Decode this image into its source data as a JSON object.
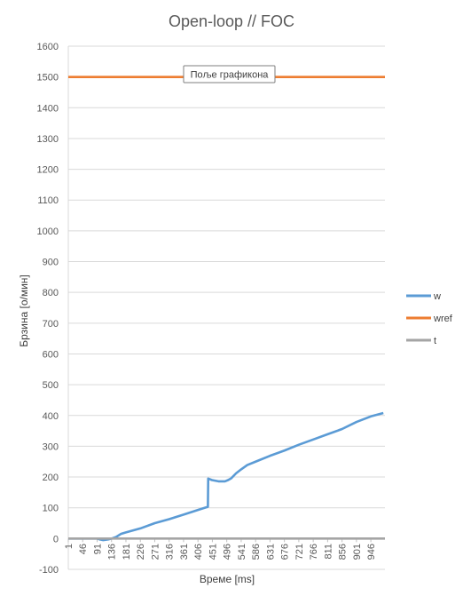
{
  "chart_data": {
    "type": "line",
    "title": "Open-loop // FOC",
    "xlabel": "Време [ms]",
    "ylabel": "Брзина [o/мин]",
    "ylim": [
      -100,
      1600
    ],
    "yticks": [
      -100,
      0,
      100,
      200,
      300,
      400,
      500,
      600,
      700,
      800,
      900,
      1000,
      1100,
      1200,
      1300,
      1400,
      1500,
      1600
    ],
    "x_range": [
      1,
      990
    ],
    "xticks": [
      "1",
      "46",
      "91",
      "136",
      "181",
      "226",
      "271",
      "316",
      "361",
      "406",
      "451",
      "496",
      "541",
      "586",
      "631",
      "676",
      "721",
      "766",
      "811",
      "856",
      "901",
      "946"
    ],
    "grid": "horizontal",
    "legend_position": "right",
    "tooltip": "Поље графикона",
    "series": [
      {
        "name": "w",
        "color": "#5b9bd5",
        "points": [
          [
            1,
            0
          ],
          [
            91,
            0
          ],
          [
            100,
            -3
          ],
          [
            110,
            -5
          ],
          [
            125,
            -3
          ],
          [
            136,
            0
          ],
          [
            150,
            5
          ],
          [
            165,
            15
          ],
          [
            181,
            20
          ],
          [
            226,
            33
          ],
          [
            271,
            50
          ],
          [
            316,
            63
          ],
          [
            361,
            78
          ],
          [
            406,
            93
          ],
          [
            430,
            101
          ],
          [
            437,
            103
          ],
          [
            438,
            195
          ],
          [
            450,
            190
          ],
          [
            470,
            186
          ],
          [
            490,
            186
          ],
          [
            500,
            190
          ],
          [
            510,
            196
          ],
          [
            525,
            212
          ],
          [
            541,
            225
          ],
          [
            560,
            239
          ],
          [
            586,
            250
          ],
          [
            631,
            269
          ],
          [
            676,
            286
          ],
          [
            721,
            305
          ],
          [
            766,
            322
          ],
          [
            811,
            339
          ],
          [
            856,
            356
          ],
          [
            901,
            379
          ],
          [
            946,
            397
          ],
          [
            985,
            408
          ]
        ]
      },
      {
        "name": "wref",
        "color": "#ed7d31",
        "points": [
          [
            1,
            1500
          ],
          [
            990,
            1500
          ]
        ]
      },
      {
        "name": "t",
        "color": "#a5a5a5",
        "points": [
          [
            1,
            0
          ],
          [
            990,
            0
          ]
        ]
      }
    ]
  }
}
